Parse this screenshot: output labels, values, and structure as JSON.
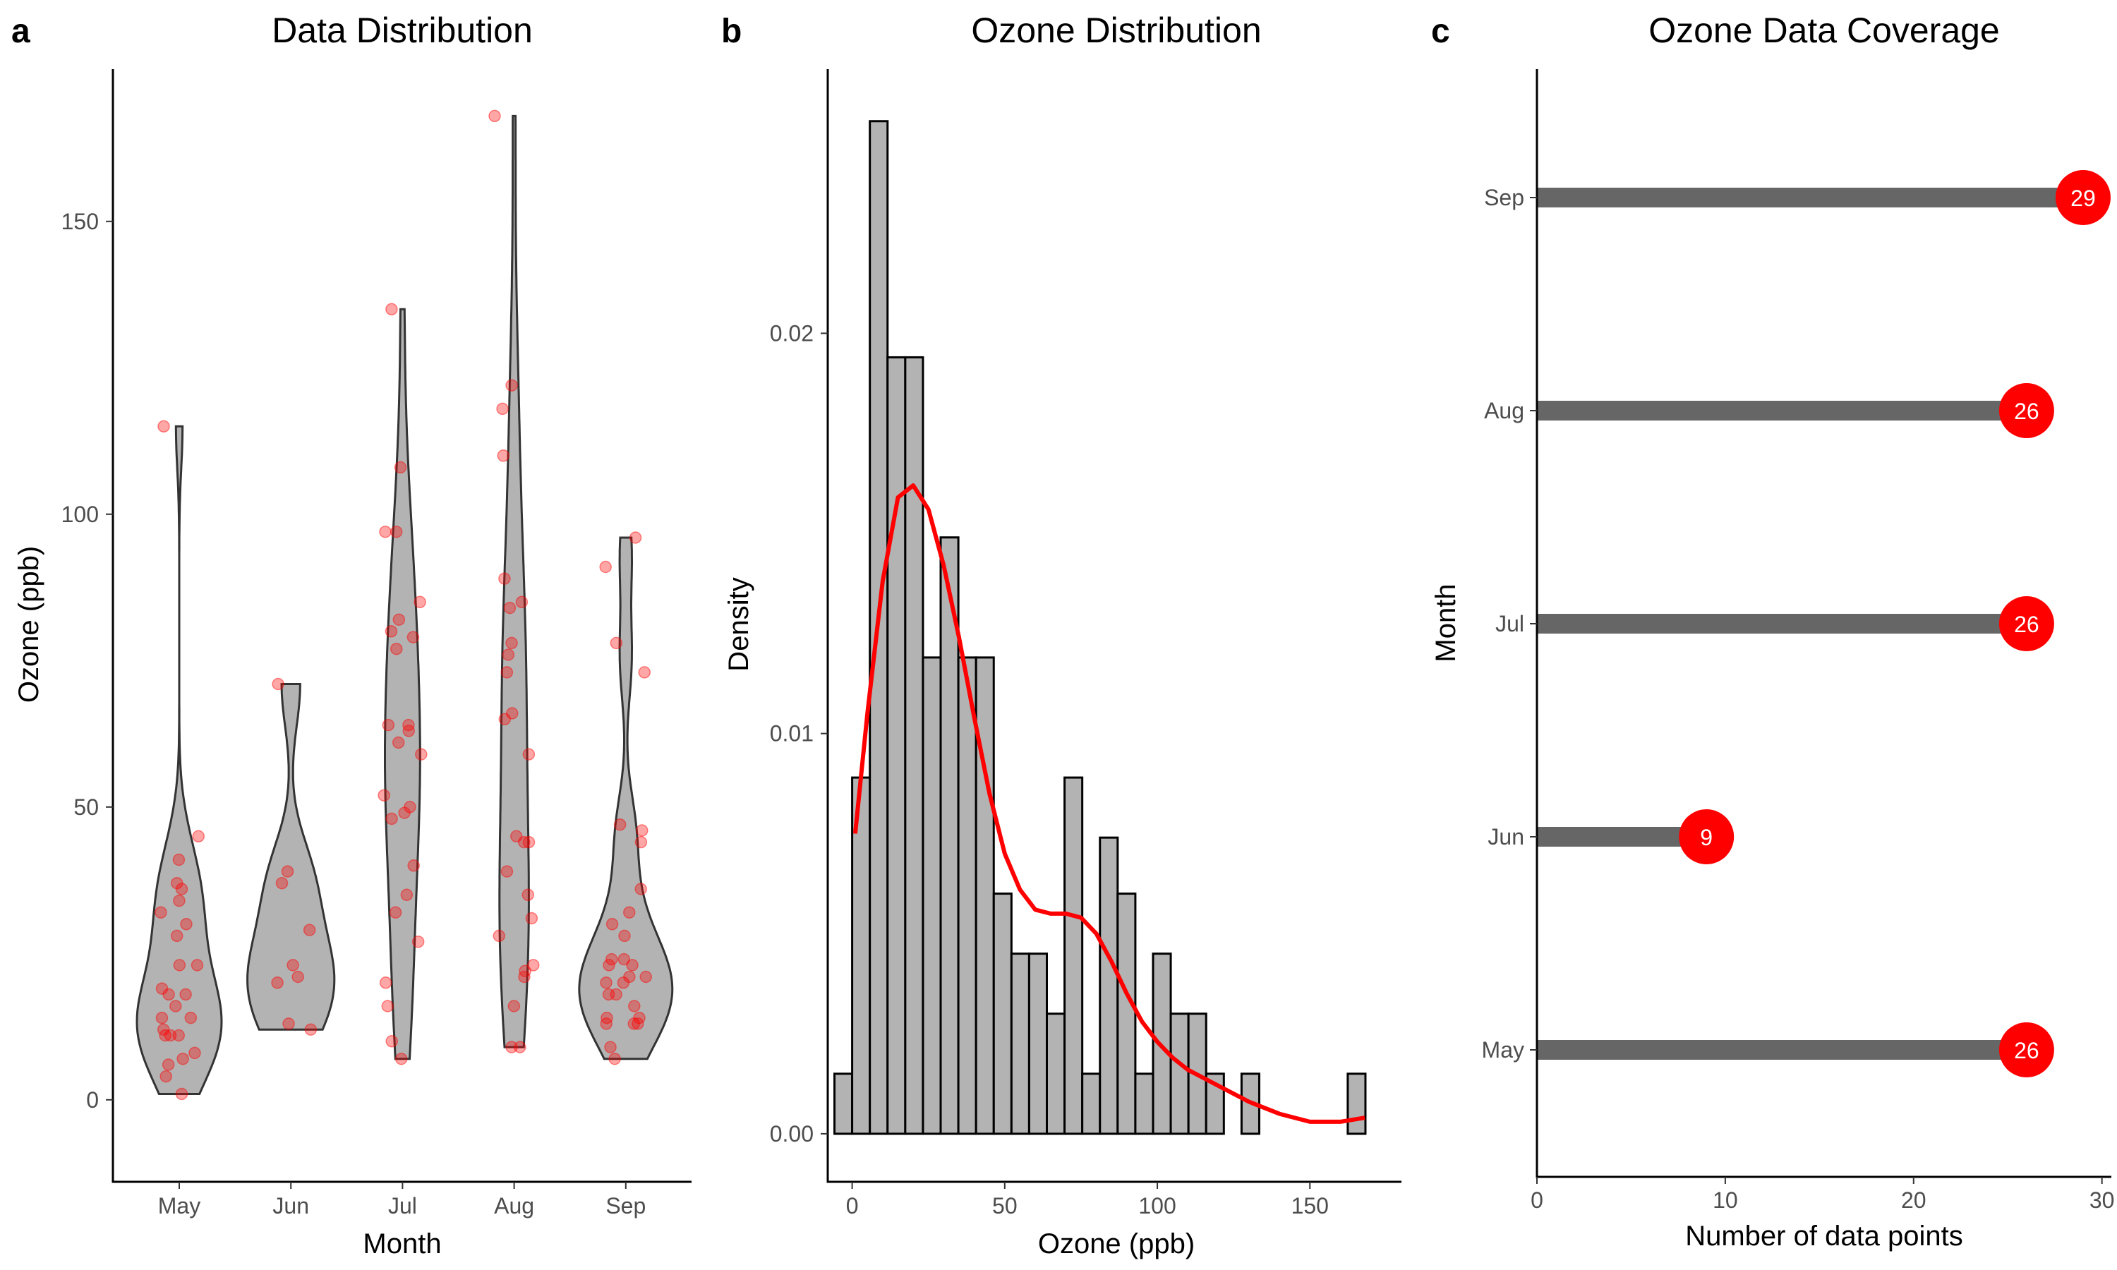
{
  "panels": {
    "a": {
      "letter": "a"
    },
    "b": {
      "letter": "b"
    },
    "c": {
      "letter": "c"
    }
  },
  "colors": {
    "fill_gray": "#b3b3b3",
    "outline": "#333333",
    "red": "#ff0000",
    "bar_dark": "#666666"
  },
  "chart_data": [
    {
      "type": "violin",
      "title": "Data Distribution",
      "xlabel": "Month",
      "ylabel": "Ozone (ppb)",
      "categories": [
        "May",
        "Jun",
        "Jul",
        "Aug",
        "Sep"
      ],
      "ylim": [
        -14,
        176
      ],
      "yticks": [
        0,
        50,
        100,
        150
      ],
      "ranges": {
        "May": [
          1,
          115
        ],
        "Jun": [
          12,
          71
        ],
        "Jul": [
          7,
          135
        ],
        "Aug": [
          9,
          168
        ],
        "Sep": [
          7,
          96
        ]
      },
      "points": {
        "May": [
          41,
          36,
          12,
          18,
          28,
          23,
          19,
          8,
          7,
          16,
          11,
          14,
          18,
          14,
          34,
          6,
          30,
          11,
          1,
          11,
          4,
          32,
          23,
          45,
          115,
          37
        ],
        "Jun": [
          29,
          71,
          39,
          23,
          21,
          37,
          20,
          12,
          13
        ],
        "Jul": [
          135,
          49,
          32,
          64,
          40,
          77,
          97,
          97,
          85,
          10,
          27,
          7,
          48,
          35,
          61,
          79,
          63,
          16,
          80,
          108,
          20,
          52,
          82,
          50,
          64,
          59
        ],
        "Aug": [
          39,
          9,
          16,
          78,
          35,
          66,
          122,
          89,
          110,
          44,
          28,
          65,
          22,
          59,
          23,
          31,
          44,
          21,
          9,
          45,
          168,
          73,
          76,
          118,
          84,
          85
        ],
        "Sep": [
          96,
          78,
          73,
          91,
          47,
          32,
          20,
          23,
          21,
          24,
          44,
          21,
          28,
          9,
          13,
          46,
          18,
          13,
          24,
          16,
          13,
          23,
          36,
          7,
          14,
          30,
          14,
          18,
          20
        ]
      }
    },
    {
      "type": "histogram",
      "title": "Ozone Distribution",
      "xlabel": "Ozone (ppb)",
      "ylabel": "Density",
      "xlim": [
        -8,
        180
      ],
      "ylim": [
        -0.0012,
        0.0266
      ],
      "xticks": [
        0,
        50,
        100,
        150
      ],
      "yticks": [
        0,
        0.01,
        0.02
      ],
      "ytick_labels": [
        "0.00",
        "0.01",
        "0.02"
      ],
      "binwidth": 5.8,
      "bins": [
        {
          "x": -2.9,
          "density": 0.0015
        },
        {
          "x": 2.9,
          "density": 0.0089
        },
        {
          "x": 8.7,
          "density": 0.0253
        },
        {
          "x": 14.5,
          "density": 0.0194
        },
        {
          "x": 20.3,
          "density": 0.0194
        },
        {
          "x": 26.1,
          "density": 0.0119
        },
        {
          "x": 31.9,
          "density": 0.0149
        },
        {
          "x": 37.7,
          "density": 0.0119
        },
        {
          "x": 43.5,
          "density": 0.0119
        },
        {
          "x": 49.3,
          "density": 0.006
        },
        {
          "x": 55.1,
          "density": 0.0045
        },
        {
          "x": 60.9,
          "density": 0.0045
        },
        {
          "x": 66.7,
          "density": 0.003
        },
        {
          "x": 72.5,
          "density": 0.0089
        },
        {
          "x": 78.3,
          "density": 0.0015
        },
        {
          "x": 84.1,
          "density": 0.0074
        },
        {
          "x": 89.9,
          "density": 0.006
        },
        {
          "x": 95.7,
          "density": 0.0015
        },
        {
          "x": 101.5,
          "density": 0.0045
        },
        {
          "x": 107.3,
          "density": 0.003
        },
        {
          "x": 113.1,
          "density": 0.003
        },
        {
          "x": 118.9,
          "density": 0.0015
        },
        {
          "x": 124.7,
          "density": 0.0
        },
        {
          "x": 130.5,
          "density": 0.0015
        },
        {
          "x": 136.3,
          "density": 0.0
        },
        {
          "x": 142.1,
          "density": 0.0
        },
        {
          "x": 147.9,
          "density": 0.0
        },
        {
          "x": 153.7,
          "density": 0.0
        },
        {
          "x": 159.5,
          "density": 0.0
        },
        {
          "x": 165.3,
          "density": 0.0015
        }
      ],
      "density_curve": {
        "x": [
          1,
          5,
          10,
          15,
          20,
          25,
          30,
          35,
          40,
          45,
          50,
          55,
          60,
          65,
          70,
          75,
          80,
          85,
          90,
          95,
          100,
          105,
          110,
          115,
          120,
          125,
          130,
          140,
          150,
          160,
          168
        ],
        "y": [
          0.0075,
          0.0105,
          0.0138,
          0.0159,
          0.0162,
          0.0156,
          0.0142,
          0.0124,
          0.0104,
          0.0085,
          0.007,
          0.0061,
          0.0056,
          0.0055,
          0.0055,
          0.0054,
          0.005,
          0.0043,
          0.0035,
          0.0028,
          0.0023,
          0.0019,
          0.0016,
          0.0014,
          0.0012,
          0.001,
          0.0008,
          0.0005,
          0.0003,
          0.0003,
          0.0004
        ]
      }
    },
    {
      "type": "lollipop",
      "title": "Ozone Data Coverage",
      "xlabel": "Number of data points",
      "ylabel": "Month",
      "xlim": [
        0,
        30.5
      ],
      "xticks": [
        0,
        10,
        20,
        30
      ],
      "categories": [
        "May",
        "Jun",
        "Jul",
        "Aug",
        "Sep"
      ],
      "values": [
        26,
        9,
        26,
        26,
        29
      ]
    }
  ]
}
